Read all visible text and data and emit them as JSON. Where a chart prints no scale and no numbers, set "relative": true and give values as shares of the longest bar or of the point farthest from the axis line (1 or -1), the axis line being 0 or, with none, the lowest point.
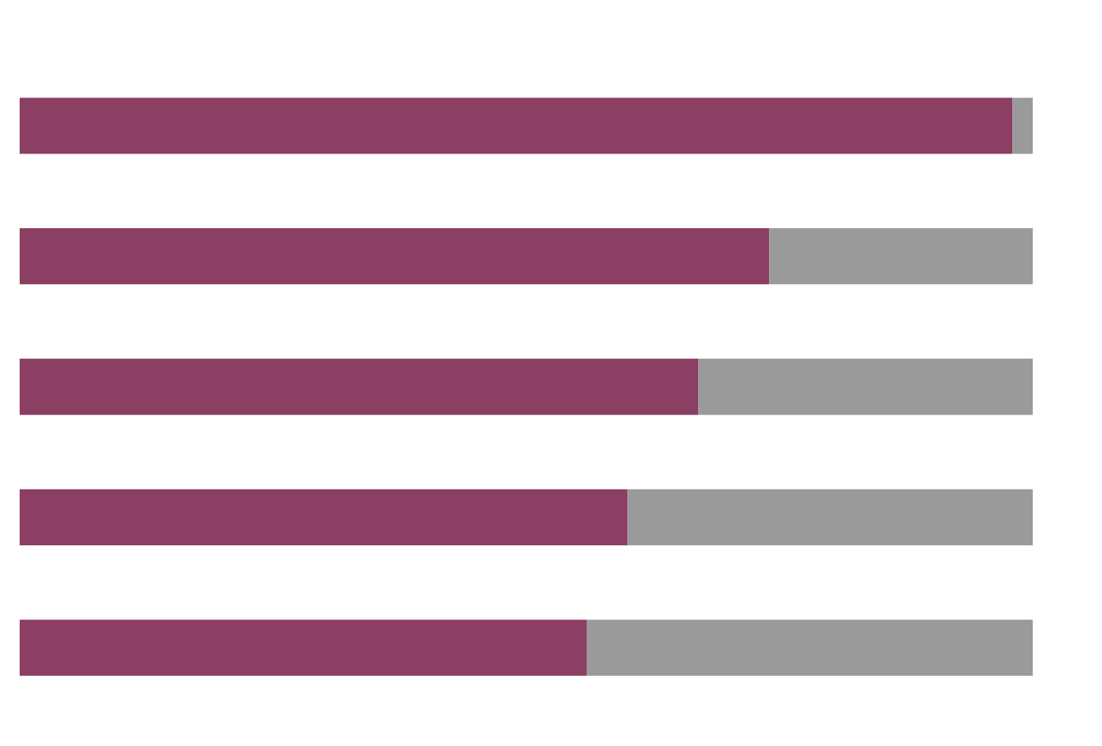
{
  "chart_data": {
    "type": "bar",
    "orientation": "horizontal",
    "stacked": true,
    "relative": true,
    "grid": false,
    "legend": false,
    "categories": [
      null,
      null,
      null,
      null,
      null
    ],
    "series": [
      {
        "color": "#8b3f62",
        "values": [
          0.98,
          0.74,
          0.67,
          0.6,
          0.56
        ]
      },
      {
        "color": "#9a9a9a",
        "values": [
          0.02,
          0.26,
          0.33,
          0.4,
          0.44
        ]
      }
    ]
  }
}
